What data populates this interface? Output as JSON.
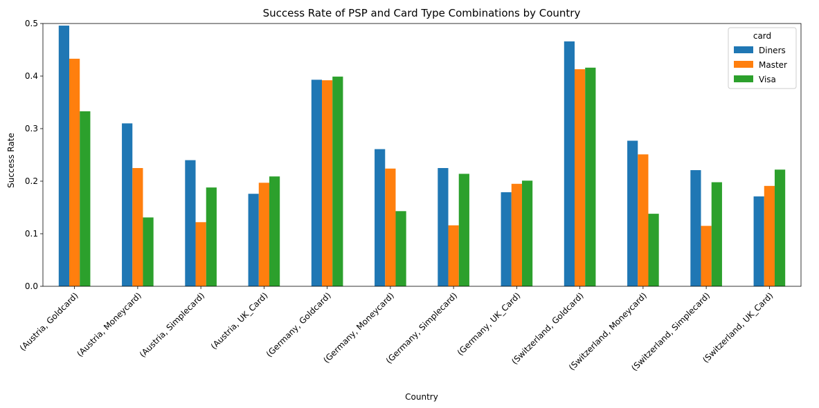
{
  "chart_data": {
    "type": "bar",
    "title": "Success Rate of PSP and Card Type Combinations by Country",
    "xlabel": "Country",
    "ylabel": "Success Rate",
    "ylim": [
      0,
      0.5
    ],
    "yticks": [
      0.0,
      0.1,
      0.2,
      0.3,
      0.4,
      0.5
    ],
    "ytick_labels": [
      "0.0",
      "0.1",
      "0.2",
      "0.3",
      "0.4",
      "0.5"
    ],
    "grid": false,
    "legend_position": "top-right",
    "legend_title": "card",
    "categories": [
      "(Austria, Goldcard)",
      "(Austria, Moneycard)",
      "(Austria, Simplecard)",
      "(Austria, UK_Card)",
      "(Germany, Goldcard)",
      "(Germany, Moneycard)",
      "(Germany, Simplecard)",
      "(Germany, UK_Card)",
      "(Switzerland, Goldcard)",
      "(Switzerland, Moneycard)",
      "(Switzerland, Simplecard)",
      "(Switzerland, UK_Card)"
    ],
    "series": [
      {
        "name": "Diners",
        "color": "#1f77b4",
        "values": [
          0.496,
          0.31,
          0.24,
          0.176,
          0.393,
          0.261,
          0.225,
          0.179,
          0.466,
          0.277,
          0.221,
          0.171
        ]
      },
      {
        "name": "Master",
        "color": "#ff7f0e",
        "values": [
          0.433,
          0.225,
          0.122,
          0.197,
          0.392,
          0.224,
          0.116,
          0.195,
          0.413,
          0.251,
          0.115,
          0.191
        ]
      },
      {
        "name": "Visa",
        "color": "#2ca02c",
        "values": [
          0.333,
          0.131,
          0.188,
          0.209,
          0.399,
          0.143,
          0.214,
          0.201,
          0.416,
          0.138,
          0.198,
          0.222
        ]
      }
    ]
  }
}
